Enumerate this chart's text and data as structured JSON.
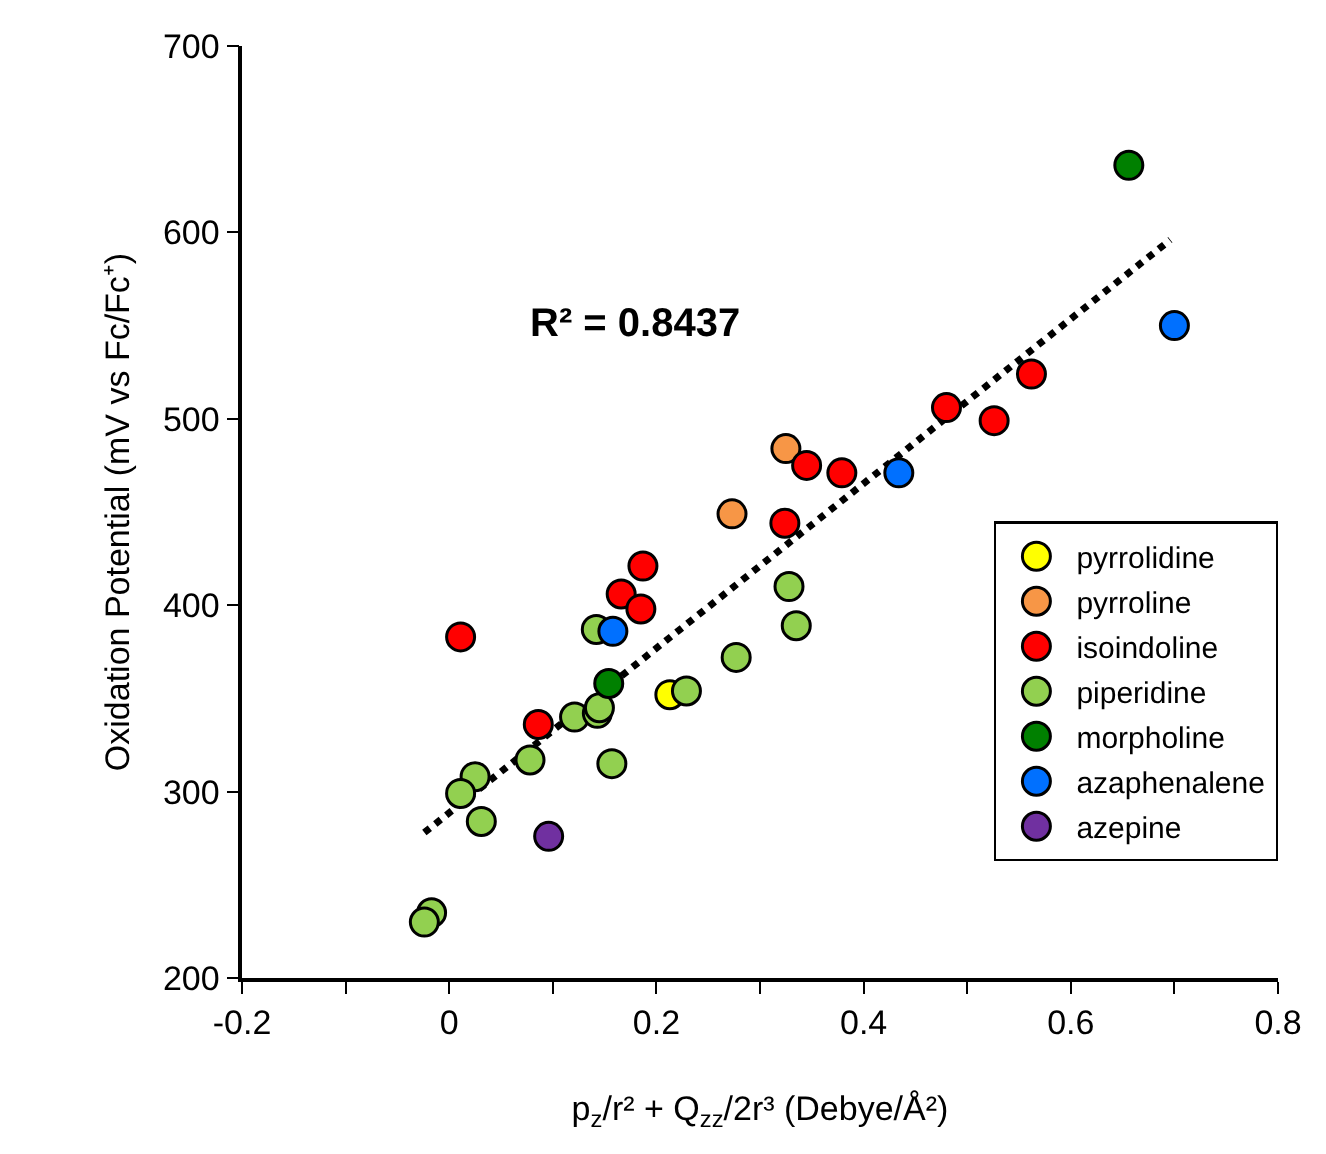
{
  "chart_data": {
    "type": "scatter",
    "xlabel": "p$_{z}$/r² + Q$_{zz}$/2r³ (Debye/Å²)",
    "ylabel": "Oxidation Potential (mV vs Fc/Fc⁺)",
    "annotations": [
      "R² = 0.8437"
    ],
    "xlim": [
      -0.2,
      0.8
    ],
    "xticks": [
      -0.2,
      {
        "value": -0.1,
        "label": null
      },
      0,
      {
        "value": 0.1,
        "label": null
      },
      0.2,
      {
        "value": 0.3,
        "label": null
      },
      0.4,
      {
        "value": 0.5,
        "label": null
      },
      0.6,
      {
        "value": 0.7,
        "label": null
      },
      0.8
    ],
    "ylim": [
      200,
      700
    ],
    "yticks": [
      200,
      300,
      400,
      500,
      600,
      700
    ],
    "legend": "bottom right",
    "marker": "circle",
    "series": [
      {
        "type": "line",
        "line_style": "dotted",
        "marker": "none",
        "color": "#000000",
        "x": [
          -0.024,
          0.696
        ],
        "values": [
          278,
          596
        ]
      },
      {
        "name": "pyrrolidine",
        "color": "#ffff00",
        "x": [
          0.213
        ],
        "values": [
          352
        ]
      },
      {
        "name": "pyrroline",
        "color": "#f79646",
        "x": [
          0.325,
          0.273
        ],
        "values": [
          484,
          449
        ]
      },
      {
        "name": "isoindoline",
        "color": "#ff0000",
        "x": [
          0.011,
          0.187,
          0.166,
          0.185,
          0.086,
          0.562,
          0.48,
          0.526,
          0.345,
          0.379,
          0.324
        ],
        "values": [
          383,
          421,
          406,
          398,
          336,
          524,
          506,
          499,
          475,
          471,
          444
        ]
      },
      {
        "name": "piperidine",
        "color": "#92d050",
        "x": [
          0.142,
          0.229,
          0.277,
          0.328,
          0.335,
          0.121,
          0.143,
          0.145,
          0.078,
          0.025,
          0.011,
          0.031,
          0.157,
          -0.017,
          -0.024
        ],
        "values": [
          387,
          354,
          372,
          410,
          389,
          340,
          342,
          345,
          317,
          308,
          299,
          284,
          315,
          235,
          230
        ]
      },
      {
        "name": "morpholine",
        "color": "#008000",
        "x": [
          0.154,
          0.656
        ],
        "values": [
          358,
          636
        ]
      },
      {
        "name": "azaphenalene",
        "color": "#0070ff",
        "x": [
          0.158,
          0.7,
          0.434
        ],
        "values": [
          386,
          550,
          471
        ]
      },
      {
        "name": "azepine",
        "color": "#7030a0",
        "x": [
          0.096
        ],
        "values": [
          276
        ]
      }
    ]
  }
}
